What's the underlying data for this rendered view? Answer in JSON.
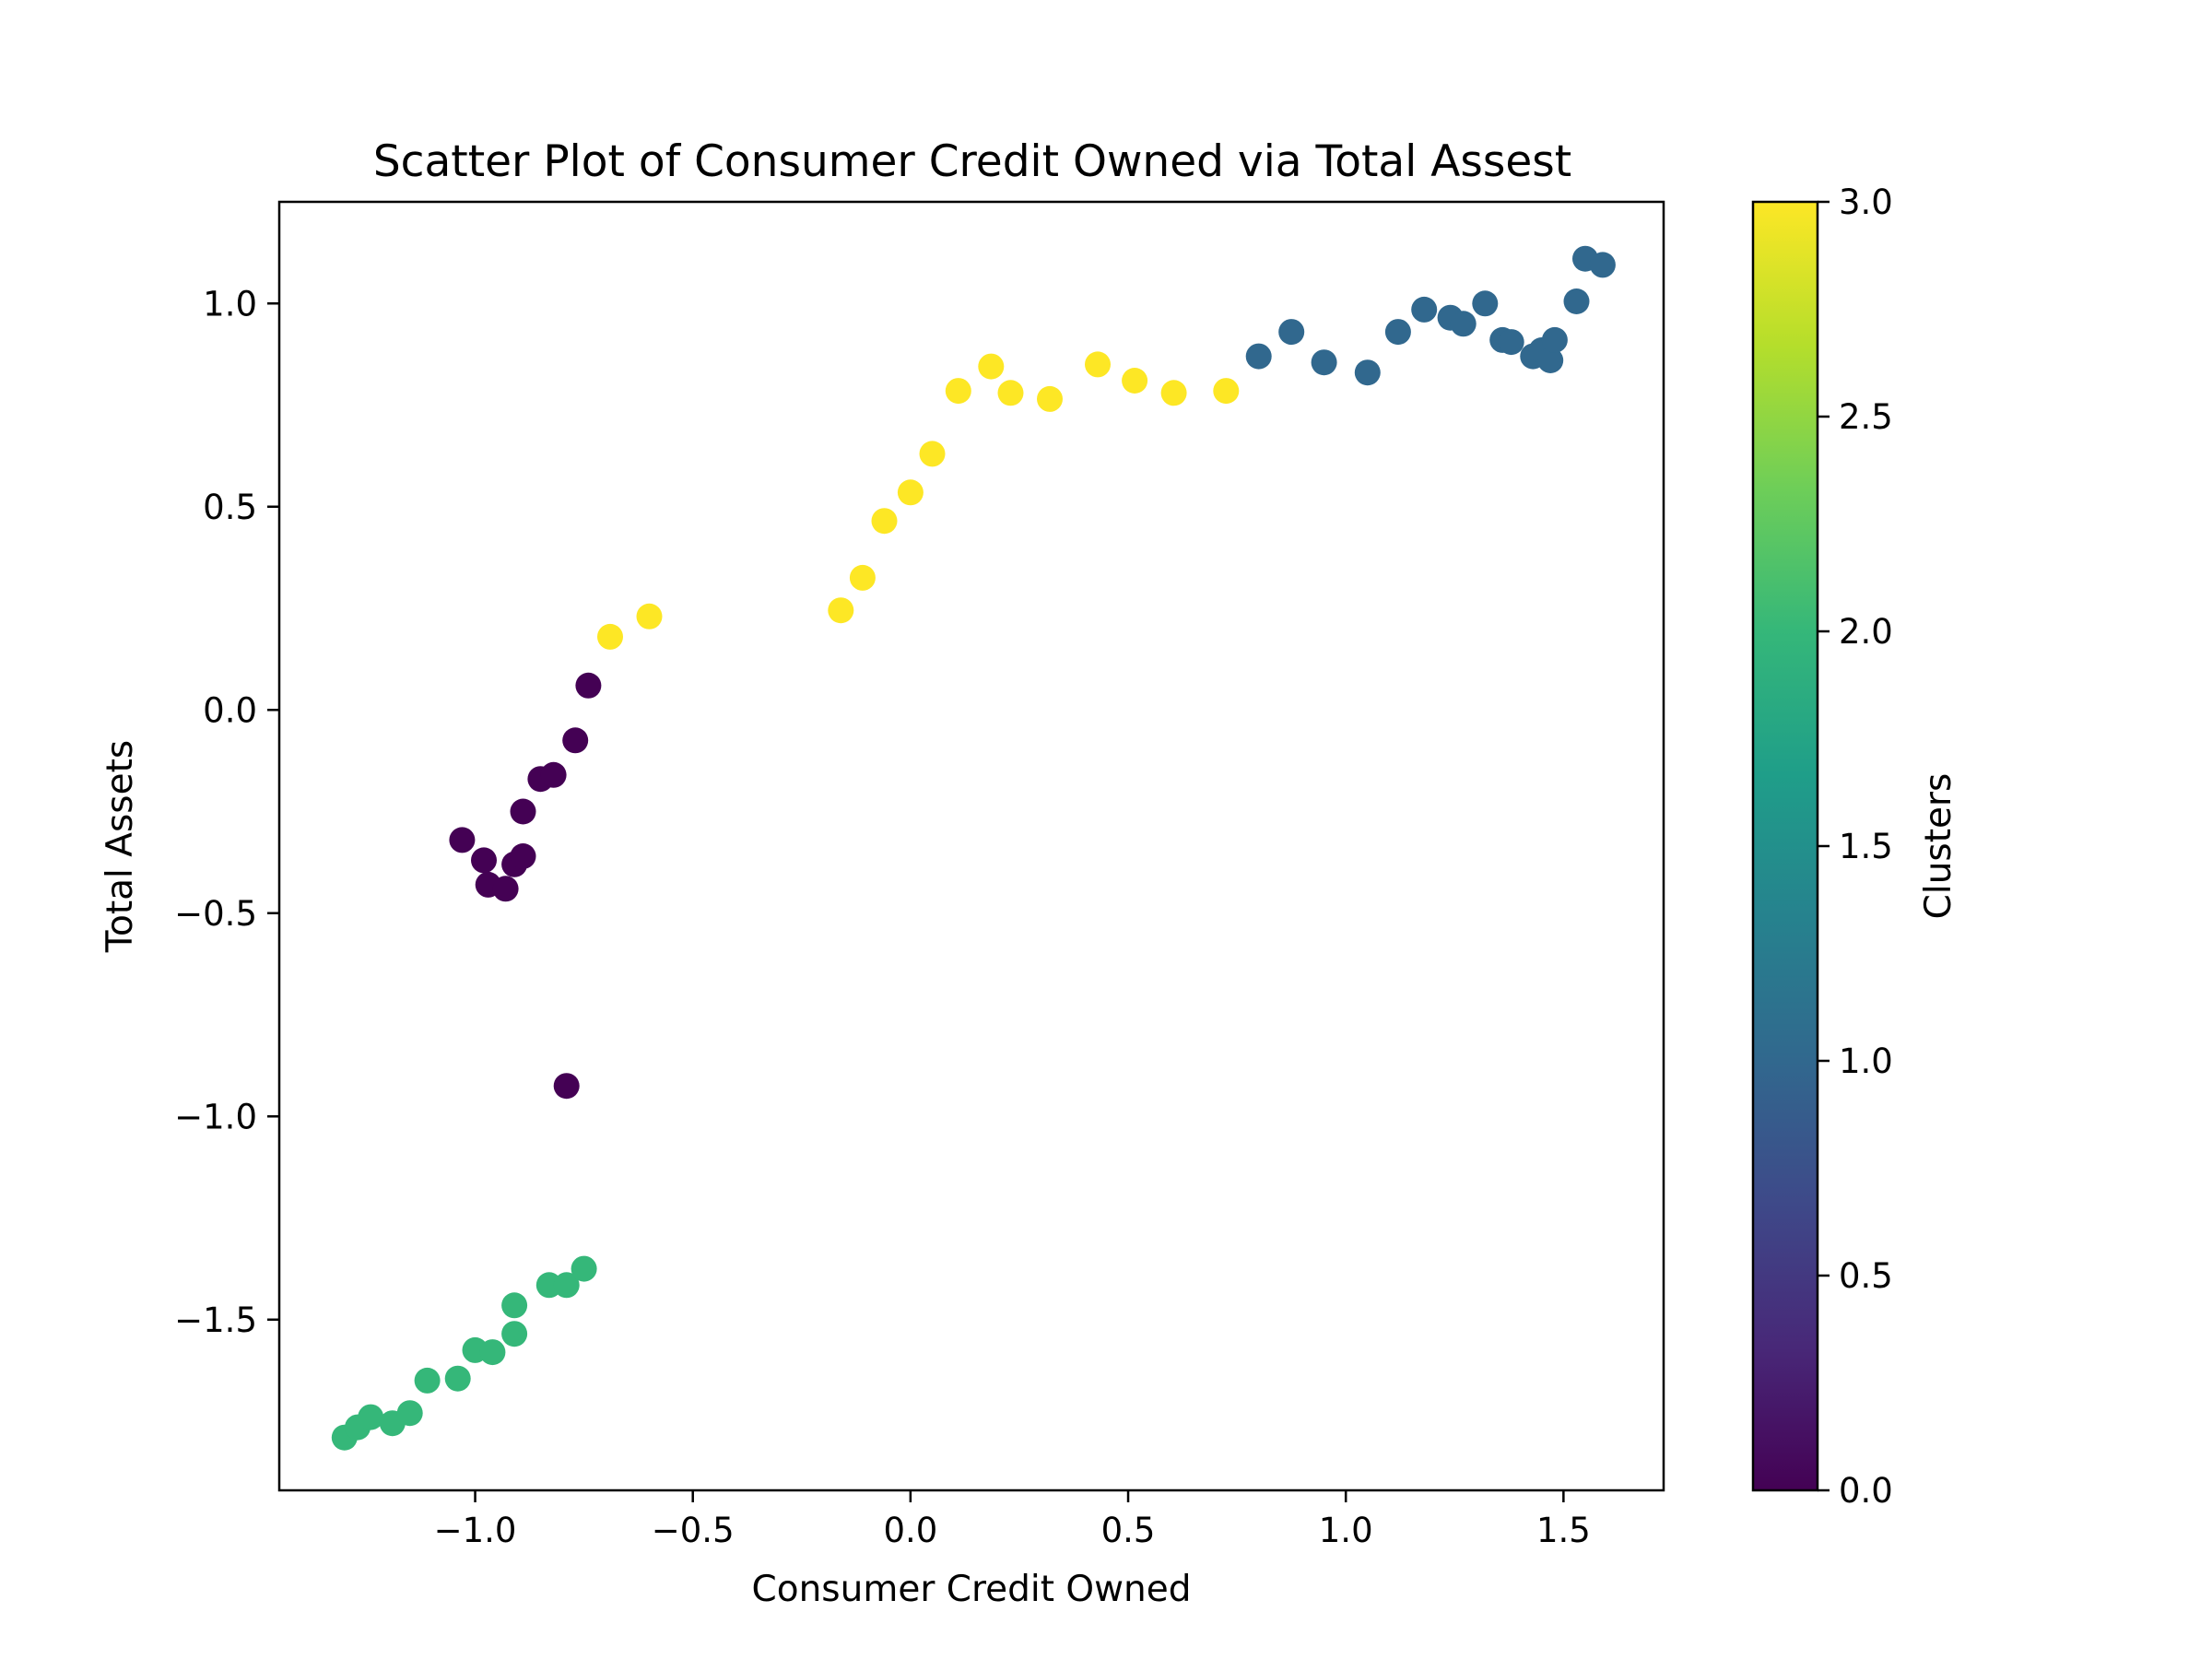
{
  "chart_data": {
    "type": "scatter",
    "title": "Scatter Plot of Consumer Credit Owned via Total Assest",
    "xlabel": "Consumer Credit Owned",
    "ylabel": "Total Assets",
    "xlim": [
      -1.45,
      1.73
    ],
    "ylim": [
      -1.92,
      1.25
    ],
    "xticks": [
      -1.0,
      -0.5,
      0.0,
      0.5,
      1.0,
      1.5
    ],
    "xtick_labels": [
      "−1.0",
      "−0.5",
      "0.0",
      "0.5",
      "1.0",
      "1.5"
    ],
    "yticks": [
      -1.5,
      -1.0,
      -0.5,
      0.0,
      0.5,
      1.0
    ],
    "ytick_labels": [
      "−1.5",
      "−1.0",
      "−0.5",
      "0.0",
      "0.5",
      "1.0"
    ],
    "grid": false,
    "colorbar": {
      "label": "Clusters",
      "colormap": "viridis",
      "range": [
        0.0,
        3.0
      ],
      "ticks": [
        0.0,
        0.5,
        1.0,
        1.5,
        2.0,
        2.5,
        3.0
      ],
      "tick_labels": [
        "0.0",
        "0.5",
        "1.0",
        "1.5",
        "2.0",
        "2.5",
        "3.0"
      ],
      "stops": [
        "#440154",
        "#482878",
        "#3e4989",
        "#31688e",
        "#26828e",
        "#1f9e89",
        "#35b779",
        "#6ece58",
        "#b5de2b",
        "#fde725"
      ]
    },
    "cluster_colors": {
      "0": "#440154",
      "1": "#31688e",
      "2": "#35b779",
      "3": "#fde725"
    },
    "points": [
      {
        "x": -1.03,
        "y": -0.32,
        "cluster": 0
      },
      {
        "x": -0.98,
        "y": -0.37,
        "cluster": 0
      },
      {
        "x": -0.97,
        "y": -0.43,
        "cluster": 0
      },
      {
        "x": -0.93,
        "y": -0.44,
        "cluster": 0
      },
      {
        "x": -0.91,
        "y": -0.38,
        "cluster": 0
      },
      {
        "x": -0.89,
        "y": -0.36,
        "cluster": 0
      },
      {
        "x": -0.89,
        "y": -0.25,
        "cluster": 0
      },
      {
        "x": -0.85,
        "y": -0.17,
        "cluster": 0
      },
      {
        "x": -0.82,
        "y": -0.16,
        "cluster": 0
      },
      {
        "x": -0.77,
        "y": -0.075,
        "cluster": 0
      },
      {
        "x": -0.74,
        "y": 0.06,
        "cluster": 0
      },
      {
        "x": -0.79,
        "y": -0.925,
        "cluster": 0
      },
      {
        "x": 0.8,
        "y": 0.87,
        "cluster": 1
      },
      {
        "x": 0.875,
        "y": 0.93,
        "cluster": 1
      },
      {
        "x": 0.95,
        "y": 0.855,
        "cluster": 1
      },
      {
        "x": 1.05,
        "y": 0.83,
        "cluster": 1
      },
      {
        "x": 1.12,
        "y": 0.93,
        "cluster": 1
      },
      {
        "x": 1.18,
        "y": 0.985,
        "cluster": 1
      },
      {
        "x": 1.24,
        "y": 0.965,
        "cluster": 1
      },
      {
        "x": 1.27,
        "y": 0.95,
        "cluster": 1
      },
      {
        "x": 1.32,
        "y": 1.0,
        "cluster": 1
      },
      {
        "x": 1.36,
        "y": 0.91,
        "cluster": 1
      },
      {
        "x": 1.38,
        "y": 0.905,
        "cluster": 1
      },
      {
        "x": 1.43,
        "y": 0.87,
        "cluster": 1
      },
      {
        "x": 1.45,
        "y": 0.885,
        "cluster": 1
      },
      {
        "x": 1.47,
        "y": 0.86,
        "cluster": 1
      },
      {
        "x": 1.48,
        "y": 0.91,
        "cluster": 1
      },
      {
        "x": 1.53,
        "y": 1.005,
        "cluster": 1
      },
      {
        "x": 1.55,
        "y": 1.11,
        "cluster": 1
      },
      {
        "x": 1.59,
        "y": 1.095,
        "cluster": 1
      },
      {
        "x": -1.3,
        "y": -1.79,
        "cluster": 2
      },
      {
        "x": -1.27,
        "y": -1.765,
        "cluster": 2
      },
      {
        "x": -1.24,
        "y": -1.74,
        "cluster": 2
      },
      {
        "x": -1.19,
        "y": -1.755,
        "cluster": 2
      },
      {
        "x": -1.15,
        "y": -1.73,
        "cluster": 2
      },
      {
        "x": -1.11,
        "y": -1.65,
        "cluster": 2
      },
      {
        "x": -1.04,
        "y": -1.645,
        "cluster": 2
      },
      {
        "x": -1.0,
        "y": -1.575,
        "cluster": 2
      },
      {
        "x": -0.96,
        "y": -1.58,
        "cluster": 2
      },
      {
        "x": -0.91,
        "y": -1.535,
        "cluster": 2
      },
      {
        "x": -0.91,
        "y": -1.465,
        "cluster": 2
      },
      {
        "x": -0.83,
        "y": -1.415,
        "cluster": 2
      },
      {
        "x": -0.79,
        "y": -1.415,
        "cluster": 2
      },
      {
        "x": -0.75,
        "y": -1.375,
        "cluster": 2
      },
      {
        "x": -0.69,
        "y": 0.18,
        "cluster": 3
      },
      {
        "x": -0.6,
        "y": 0.23,
        "cluster": 3
      },
      {
        "x": -0.16,
        "y": 0.245,
        "cluster": 3
      },
      {
        "x": -0.11,
        "y": 0.325,
        "cluster": 3
      },
      {
        "x": -0.06,
        "y": 0.465,
        "cluster": 3
      },
      {
        "x": 0.0,
        "y": 0.535,
        "cluster": 3
      },
      {
        "x": 0.05,
        "y": 0.63,
        "cluster": 3
      },
      {
        "x": 0.11,
        "y": 0.785,
        "cluster": 3
      },
      {
        "x": 0.185,
        "y": 0.845,
        "cluster": 3
      },
      {
        "x": 0.23,
        "y": 0.78,
        "cluster": 3
      },
      {
        "x": 0.32,
        "y": 0.765,
        "cluster": 3
      },
      {
        "x": 0.43,
        "y": 0.85,
        "cluster": 3
      },
      {
        "x": 0.515,
        "y": 0.81,
        "cluster": 3
      },
      {
        "x": 0.605,
        "y": 0.78,
        "cluster": 3
      },
      {
        "x": 0.725,
        "y": 0.785,
        "cluster": 3
      }
    ]
  }
}
